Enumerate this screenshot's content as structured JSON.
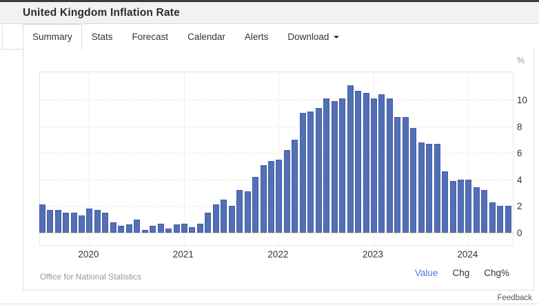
{
  "header": {
    "title": "United Kingdom Inflation Rate"
  },
  "tabs": {
    "items": [
      {
        "label": "Summary",
        "active": true,
        "caret": false
      },
      {
        "label": "Stats",
        "active": false,
        "caret": false
      },
      {
        "label": "Forecast",
        "active": false,
        "caret": false
      },
      {
        "label": "Calendar",
        "active": false,
        "caret": false
      },
      {
        "label": "Alerts",
        "active": false,
        "caret": false
      },
      {
        "label": "Download",
        "active": false,
        "caret": true
      }
    ]
  },
  "chart_data": {
    "type": "bar",
    "series_name": "United Kingdom Inflation Rate",
    "unit": "%",
    "frequency": "monthly",
    "x_start": "2019-07",
    "x_end": "2024-06",
    "months": [
      "2019-07",
      "2019-08",
      "2019-09",
      "2019-10",
      "2019-11",
      "2019-12",
      "2020-01",
      "2020-02",
      "2020-03",
      "2020-04",
      "2020-05",
      "2020-06",
      "2020-07",
      "2020-08",
      "2020-09",
      "2020-10",
      "2020-11",
      "2020-12",
      "2021-01",
      "2021-02",
      "2021-03",
      "2021-04",
      "2021-05",
      "2021-06",
      "2021-07",
      "2021-08",
      "2021-09",
      "2021-10",
      "2021-11",
      "2021-12",
      "2022-01",
      "2022-02",
      "2022-03",
      "2022-04",
      "2022-05",
      "2022-06",
      "2022-07",
      "2022-08",
      "2022-09",
      "2022-10",
      "2022-11",
      "2022-12",
      "2023-01",
      "2023-02",
      "2023-03",
      "2023-04",
      "2023-05",
      "2023-06",
      "2023-07",
      "2023-08",
      "2023-09",
      "2023-10",
      "2023-11",
      "2023-12",
      "2024-01",
      "2024-02",
      "2024-03",
      "2024-04",
      "2024-05",
      "2024-06"
    ],
    "values": [
      2.1,
      1.7,
      1.7,
      1.5,
      1.5,
      1.3,
      1.8,
      1.7,
      1.5,
      0.8,
      0.5,
      0.6,
      1.0,
      0.2,
      0.5,
      0.7,
      0.3,
      0.6,
      0.7,
      0.4,
      0.7,
      1.5,
      2.1,
      2.5,
      2.0,
      3.2,
      3.1,
      4.2,
      5.1,
      5.4,
      5.5,
      6.2,
      7.0,
      9.0,
      9.1,
      9.4,
      10.1,
      9.9,
      10.1,
      11.1,
      10.7,
      10.5,
      10.1,
      10.4,
      10.1,
      8.7,
      8.7,
      7.9,
      6.8,
      6.7,
      6.7,
      4.6,
      3.9,
      4.0,
      4.0,
      3.4,
      3.2,
      2.3,
      2.0,
      2.0
    ],
    "year_ticks": [
      "2020",
      "2021",
      "2022",
      "2023",
      "2024"
    ],
    "yticks": [
      0,
      2,
      4,
      6,
      8,
      10
    ],
    "ylim": [
      -0.9,
      12.2
    ],
    "grid": true,
    "legend": "none",
    "bar_color": "#5170b5",
    "bar_border_color": "#445da2",
    "source": "Office for National Statistics"
  },
  "footer": {
    "source": "Office for National Statistics",
    "links": [
      {
        "label": "Value",
        "active": true
      },
      {
        "label": "Chg",
        "active": false
      },
      {
        "label": "Chg%",
        "active": false
      }
    ]
  },
  "feedback_label": "Feedback"
}
